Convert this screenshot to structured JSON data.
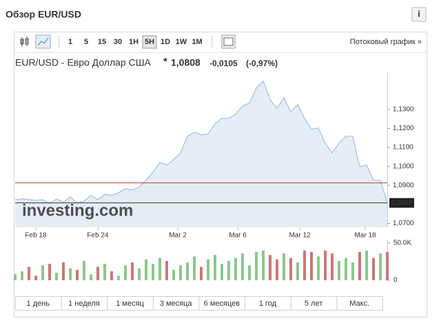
{
  "header": {
    "title": "Обзор EUR/USD"
  },
  "toolbar": {
    "intervals": [
      "1",
      "5",
      "15",
      "30",
      "1H",
      "5H",
      "1D",
      "1W",
      "1M"
    ],
    "selected_interval": "5H",
    "streaming_link": "Потоковый график »"
  },
  "quote": {
    "name": "EUR/USD - Евро Доллар США",
    "marker": "*",
    "change": "-0,0105",
    "change_percent": "(-0,97%)"
  },
  "periods": [
    "1 день",
    "1 неделя",
    "1 месяц",
    "3 месяца",
    "6 месяцев",
    "1 год",
    "5 лет",
    "Макс."
  ],
  "chart_data": {
    "type": "area",
    "watermark": "investing.com",
    "values": [
      1.0825,
      1.0829,
      1.0825,
      1.0822,
      1.0825,
      1.0804,
      1.0829,
      1.0811,
      1.084,
      1.0807,
      1.0818,
      1.0847,
      1.0825,
      1.0854,
      1.0847,
      1.0862,
      1.0883,
      1.0876,
      1.0891,
      1.0927,
      1.097,
      1.1021,
      1.1007,
      1.1036,
      1.1072,
      1.1159,
      1.118,
      1.1166,
      1.117,
      1.1224,
      1.1253,
      1.1253,
      1.1275,
      1.1318,
      1.1333,
      1.1412,
      1.1449,
      1.1351,
      1.1304,
      1.1362,
      1.1286,
      1.1325,
      1.1253,
      1.1195,
      1.1202,
      1.1122,
      1.1072,
      1.1122,
      1.1159,
      1.1159,
      1.0999,
      1.1007,
      1.0927,
      1.0927,
      1.0808
    ],
    "color": "#9fc0de",
    "fill": "#e4edf6",
    "ylim": [
      1.068,
      1.1495
    ],
    "yticks": [
      {
        "value": 1.13,
        "label": "1,1300"
      },
      {
        "value": 1.12,
        "label": "1,1200"
      },
      {
        "value": 1.11,
        "label": "1,1100"
      },
      {
        "value": 1.1,
        "label": "1,1000"
      },
      {
        "value": 1.09,
        "label": "1,0900"
      },
      {
        "value": 1.07,
        "label": "1,0700"
      }
    ],
    "xticks": [
      {
        "value": 3,
        "label": "Feb 18"
      },
      {
        "value": 12,
        "label": "Feb 24"
      },
      {
        "value": 23.6,
        "label": "Mar 2"
      },
      {
        "value": 32.3,
        "label": "Mar 6"
      },
      {
        "value": 41.3,
        "label": "Mar 12"
      },
      {
        "value": 50.8,
        "label": "Mar 18"
      }
    ],
    "previous_close": 1.0913,
    "previous_close_color": "#c0392b",
    "last_price": {
      "value": 1.0808,
      "label": "1,0808"
    },
    "volume": [
      8000,
      12000,
      18000,
      6000,
      20000,
      22000,
      10000,
      24000,
      16000,
      14000,
      26000,
      8000,
      18000,
      22000,
      12000,
      6000,
      20000,
      24000,
      16000,
      28000,
      22000,
      30000,
      26000,
      14000,
      20000,
      24000,
      32000,
      18000,
      28000,
      34000,
      22000,
      26000,
      30000,
      36000,
      20000,
      38000,
      40000,
      34000,
      28000,
      36000,
      30000,
      24000,
      40000,
      38000,
      32000,
      40000,
      36000,
      26000,
      30000,
      24000,
      38000,
      40000,
      30000,
      36000,
      38000
    ],
    "volume_ylim": [
      0,
      50000
    ],
    "volume_ticks": [
      {
        "value": 50000,
        "label": "50.0K"
      },
      0
    ],
    "up_color": "#8cc78c",
    "down_color": "#c9787a"
  }
}
